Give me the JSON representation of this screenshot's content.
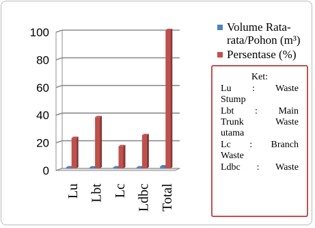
{
  "chart_data": {
    "type": "bar",
    "categories": [
      "Lu",
      "Lbt",
      "Lc",
      "Ldbc",
      "Total"
    ],
    "series": [
      {
        "name": "Volume Rata-rata/Pohon (m³)",
        "values": [
          0.3,
          0.6,
          0.3,
          0.3,
          1.5
        ],
        "color": "#4f81bd"
      },
      {
        "name": "Persentase (%)",
        "values": [
          22,
          37,
          16,
          24,
          100
        ],
        "color": "#c0504d"
      }
    ],
    "yticks": [
      0,
      20,
      40,
      60,
      80,
      100
    ],
    "ylim": [
      0,
      100
    ],
    "grid": true,
    "legend_position": "right"
  },
  "legend": {
    "volume_line1": "Volume Rata-",
    "volume_line2": "rata/Pohon (m³)",
    "persentase": "Persentase (%)"
  },
  "ket": {
    "title": "Ket:",
    "entries": [
      {
        "lines": [
          "Lu : Waste",
          "Stump"
        ]
      },
      {
        "lines": [
          "Lbt : Main",
          "Trunk Waste",
          "utama"
        ]
      },
      {
        "lines": [
          "Lc : Branch",
          "Waste"
        ]
      },
      {
        "lines": [
          "Ldbc : Waste"
        ]
      }
    ]
  }
}
